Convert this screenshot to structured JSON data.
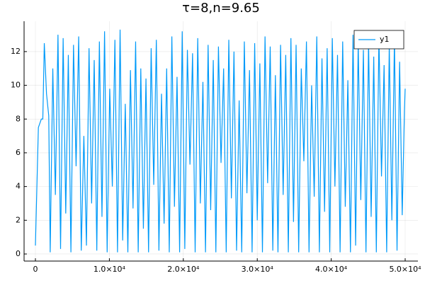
{
  "chart_data": {
    "type": "line",
    "title": "τ=8,n=9.65",
    "x": [
      0,
      400,
      800,
      1000,
      1200,
      1500,
      1800,
      2000,
      2350,
      2700,
      3050,
      3400,
      3750,
      4100,
      4450,
      4800,
      5150,
      5500,
      5850,
      6200,
      6550,
      6900,
      7250,
      7600,
      7950,
      8300,
      8650,
      9000,
      9350,
      9700,
      10050,
      10400,
      10750,
      11100,
      11450,
      11800,
      12150,
      12500,
      12850,
      13200,
      13550,
      13900,
      14250,
      14600,
      14950,
      15300,
      15650,
      16000,
      16350,
      16700,
      17050,
      17400,
      17750,
      18100,
      18450,
      18800,
      19150,
      19500,
      19850,
      20200,
      20550,
      20900,
      21250,
      21600,
      21950,
      22300,
      22650,
      23000,
      23350,
      23700,
      24050,
      24400,
      24750,
      25100,
      25450,
      25800,
      26150,
      26500,
      26850,
      27200,
      27550,
      27900,
      28250,
      28600,
      28950,
      29300,
      29650,
      30000,
      30350,
      30700,
      31050,
      31400,
      31750,
      32100,
      32450,
      32800,
      33150,
      33500,
      33850,
      34200,
      34550,
      34900,
      35250,
      35600,
      35950,
      36300,
      36650,
      37000,
      37350,
      37700,
      38050,
      38400,
      38750,
      39100,
      39450,
      39800,
      40150,
      40500,
      40850,
      41200,
      41550,
      41900,
      42250,
      42600,
      42950,
      43300,
      43650,
      44000,
      44350,
      44700,
      45050,
      45400,
      45750,
      46100,
      46450,
      46800,
      47150,
      47500,
      47850,
      48200,
      48550,
      48900,
      49250,
      49600,
      49900,
      50000
    ],
    "series": [
      {
        "name": "y1",
        "color": "#009af9",
        "values": [
          0.5,
          7.5,
          8,
          8,
          12.5,
          9.5,
          8.2,
          0.1,
          11,
          3.5,
          13,
          0.3,
          12.8,
          2.4,
          11.8,
          0.1,
          12.4,
          5.2,
          12.9,
          0.2,
          7,
          0.5,
          12.2,
          3,
          11.5,
          0.2,
          12.6,
          2.2,
          13.2,
          0.1,
          9.8,
          4,
          12.7,
          0.1,
          13.3,
          0.8,
          8.9,
          0.1,
          10.9,
          2.7,
          12.6,
          0.1,
          11,
          1.5,
          10.4,
          0.1,
          12.2,
          4.1,
          12.7,
          0.2,
          9.5,
          1.8,
          11,
          0.1,
          12.9,
          2.8,
          10.5,
          0.1,
          13.2,
          0.3,
          12.1,
          5.3,
          11.9,
          0.1,
          12.8,
          3,
          10.2,
          0.1,
          12.4,
          2.6,
          11.5,
          0.1,
          12.3,
          5.4,
          11,
          0.1,
          12.7,
          3.3,
          12,
          0.2,
          9.1,
          0.1,
          12.6,
          3.6,
          10.9,
          0.1,
          12.5,
          2,
          11.3,
          0.1,
          12.9,
          4.2,
          12.3,
          0.2,
          10.6,
          0.1,
          12.4,
          3.5,
          11.8,
          0.1,
          12.8,
          1.9,
          12.4,
          0.1,
          11,
          5.5,
          12.6,
          0.1,
          10,
          3.4,
          12.9,
          0.1,
          11.6,
          2.5,
          12.2,
          0.1,
          12.8,
          4,
          11.8,
          0.1,
          12.6,
          2.8,
          10.3,
          0.1,
          13,
          0.5,
          12.5,
          3.2,
          12.1,
          0.1,
          12.6,
          2.2,
          11.7,
          0.1,
          12.9,
          4.6,
          11.2,
          0.1,
          12.4,
          2,
          12.8,
          0.2,
          11.4,
          2.3,
          8.5,
          9.8
        ]
      }
    ],
    "xlim": [
      -1533,
      51724
    ],
    "ylim": [
      -0.42,
      13.8
    ],
    "xticks": [
      0,
      {
        "value": 10000,
        "label": "1.0×10⁴"
      },
      {
        "value": 20000,
        "label": "2.0×10⁴"
      },
      {
        "value": 30000,
        "label": "3.0×10⁴"
      },
      {
        "value": 40000,
        "label": "4.0×10⁴"
      },
      {
        "value": 50000,
        "label": "5.0×10⁴"
      }
    ],
    "yticks": [
      0,
      2,
      4,
      6,
      8,
      10,
      12
    ],
    "grid": true,
    "legend": "top-right"
  }
}
